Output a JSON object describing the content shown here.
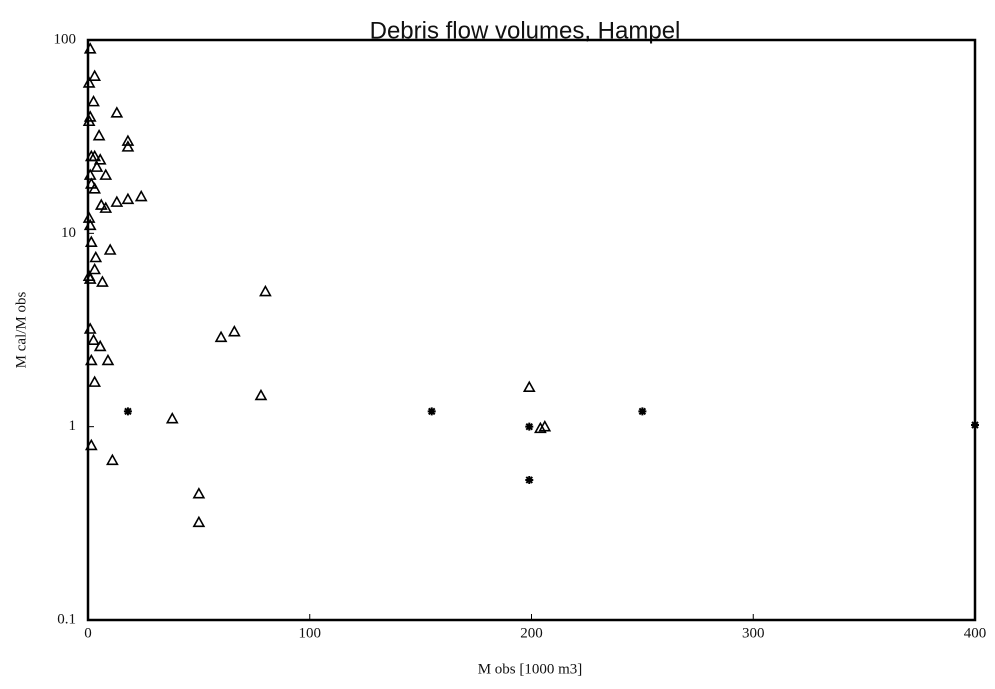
{
  "chart_data": {
    "type": "scatter",
    "title": "Debris flow volumes, Hampel",
    "x_label": "M obs [1000 m3]",
    "y_label": "M cal/M obs",
    "xlim": [
      0,
      400
    ],
    "ylim": [
      0.1,
      100
    ],
    "log_y": true,
    "xticks": [
      0,
      100,
      200,
      300,
      400
    ],
    "yticks": [
      0.1,
      1,
      10,
      100
    ],
    "series": [
      {
        "marker": "triangle",
        "color": "#000000",
        "x": [
          1,
          0.5,
          1,
          0.5,
          1.5,
          1,
          1.5,
          0.5,
          1,
          1.5,
          0.5,
          1,
          1,
          1.5,
          1.5,
          3,
          2.5,
          3,
          4,
          3,
          3.5,
          3,
          2.5,
          3,
          5,
          5.5,
          6,
          6.5,
          5.5,
          8,
          8,
          9,
          10,
          11,
          13,
          13,
          18,
          18,
          18,
          24,
          38,
          50,
          50,
          60,
          66,
          78,
          80,
          199,
          204,
          206
        ],
        "values": [
          90,
          60,
          40,
          38,
          25,
          20,
          18,
          12,
          11,
          9,
          6,
          5.8,
          3.2,
          2.2,
          0.8,
          65,
          48,
          25,
          22,
          17,
          7.5,
          6.5,
          2.8,
          1.7,
          32,
          24,
          14,
          5.6,
          2.6,
          20,
          13.5,
          2.2,
          8.2,
          0.67,
          42,
          14.5,
          30,
          28,
          15,
          15.5,
          1.1,
          0.45,
          0.32,
          2.9,
          3.1,
          1.45,
          5,
          1.6,
          0.98,
          1.0
        ]
      },
      {
        "marker": "asterisk",
        "color": "#000000",
        "x": [
          18,
          155,
          199,
          199,
          250,
          400
        ],
        "values": [
          1.2,
          1.2,
          1.0,
          0.53,
          1.2,
          1.02
        ]
      }
    ]
  }
}
